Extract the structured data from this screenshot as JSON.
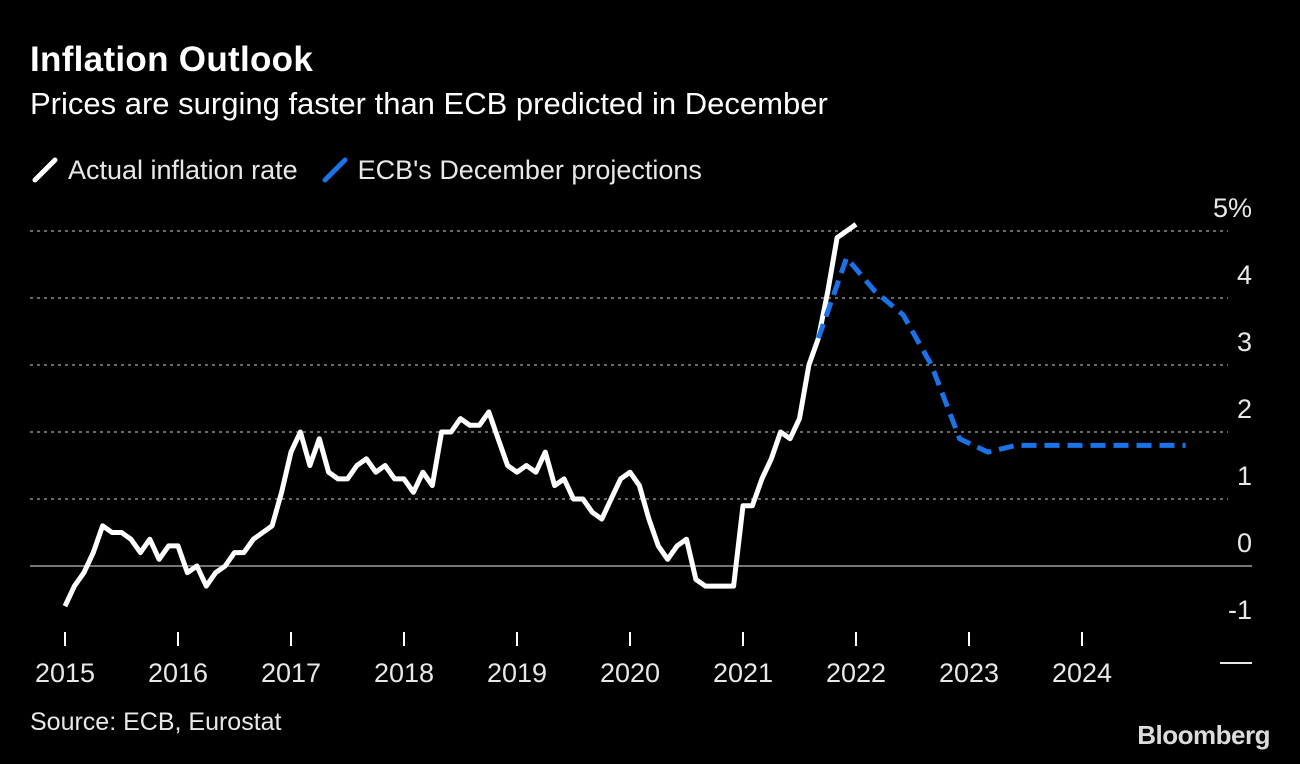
{
  "header": {
    "title": "Inflation Outlook",
    "subtitle": "Prices are surging faster than ECB predicted in December"
  },
  "legend": {
    "items": [
      {
        "label": "Actual inflation rate",
        "color": "#ffffff",
        "style": "solid"
      },
      {
        "label": "ECB's December projections",
        "color": "#1a73e8",
        "style": "dashed"
      }
    ]
  },
  "footer": {
    "source": "Source: ECB, Eurostat",
    "brand": "Bloomberg"
  },
  "chart_data": {
    "type": "line",
    "title": "Inflation Outlook",
    "subtitle": "Prices are surging faster than ECB predicted in December",
    "xlabel": "",
    "ylabel": "",
    "xlim": [
      2015,
      2025
    ],
    "ylim": [
      -1,
      5
    ],
    "x_ticks": [
      "2015",
      "2016",
      "2017",
      "2018",
      "2019",
      "2020",
      "2021",
      "2022",
      "2023",
      "2024"
    ],
    "y_ticks": [
      "-1",
      "0",
      "1",
      "2",
      "3",
      "4",
      "5%"
    ],
    "grid": true,
    "legend_position": "top-left",
    "y_axis_side": "right",
    "series": [
      {
        "name": "Actual inflation rate",
        "color": "#ffffff",
        "style": "solid",
        "x": [
          2015.0,
          2015.083,
          2015.167,
          2015.25,
          2015.333,
          2015.417,
          2015.5,
          2015.583,
          2015.667,
          2015.75,
          2015.833,
          2015.917,
          2016.0,
          2016.083,
          2016.167,
          2016.25,
          2016.333,
          2016.417,
          2016.5,
          2016.583,
          2016.667,
          2016.75,
          2016.833,
          2016.917,
          2017.0,
          2017.083,
          2017.167,
          2017.25,
          2017.333,
          2017.417,
          2017.5,
          2017.583,
          2017.667,
          2017.75,
          2017.833,
          2017.917,
          2018.0,
          2018.083,
          2018.167,
          2018.25,
          2018.333,
          2018.417,
          2018.5,
          2018.583,
          2018.667,
          2018.75,
          2018.833,
          2018.917,
          2019.0,
          2019.083,
          2019.167,
          2019.25,
          2019.333,
          2019.417,
          2019.5,
          2019.583,
          2019.667,
          2019.75,
          2019.833,
          2019.917,
          2020.0,
          2020.083,
          2020.167,
          2020.25,
          2020.333,
          2020.417,
          2020.5,
          2020.583,
          2020.667,
          2020.75,
          2020.833,
          2020.917,
          2021.0,
          2021.083,
          2021.167,
          2021.25,
          2021.333,
          2021.417,
          2021.5,
          2021.583,
          2021.667,
          2021.75,
          2021.833,
          2021.917,
          2022.0
        ],
        "y": [
          -0.6,
          -0.3,
          -0.1,
          0.2,
          0.6,
          0.5,
          0.5,
          0.4,
          0.2,
          0.4,
          0.1,
          0.3,
          0.3,
          -0.1,
          0.0,
          -0.3,
          -0.1,
          0.0,
          0.2,
          0.2,
          0.4,
          0.5,
          0.6,
          1.1,
          1.7,
          2.0,
          1.5,
          1.9,
          1.4,
          1.3,
          1.3,
          1.5,
          1.6,
          1.4,
          1.5,
          1.3,
          1.3,
          1.1,
          1.4,
          1.2,
          2.0,
          2.0,
          2.2,
          2.1,
          2.1,
          2.3,
          1.9,
          1.5,
          1.4,
          1.5,
          1.4,
          1.7,
          1.2,
          1.3,
          1.0,
          1.0,
          0.8,
          0.7,
          1.0,
          1.3,
          1.4,
          1.2,
          0.7,
          0.3,
          0.1,
          0.3,
          0.4,
          -0.2,
          -0.3,
          -0.3,
          -0.3,
          -0.3,
          0.9,
          0.9,
          1.3,
          1.6,
          2.0,
          1.9,
          2.2,
          3.0,
          3.4,
          4.1,
          4.9,
          5.0,
          5.1
        ]
      },
      {
        "name": "ECB's December projections",
        "color": "#1a73e8",
        "style": "dashed",
        "x": [
          2021.667,
          2021.917,
          2022.167,
          2022.417,
          2022.667,
          2022.917,
          2023.167,
          2023.417,
          2023.667,
          2023.917,
          2024.167,
          2024.417,
          2024.667,
          2024.917
        ],
        "y": [
          3.4,
          4.6,
          4.1,
          3.75,
          3.0,
          1.9,
          1.7,
          1.8,
          1.8,
          1.8,
          1.8,
          1.8,
          1.8,
          1.8
        ]
      }
    ]
  }
}
